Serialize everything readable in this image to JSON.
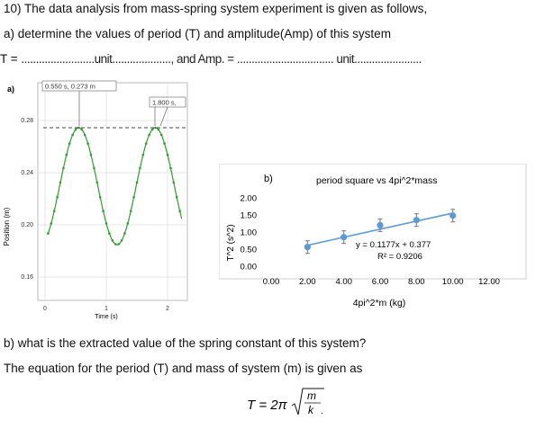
{
  "question": {
    "line1": "10) The data analysis from mass-spring system experiment is given as follows,",
    "line2": "a) determine the values of period (T) and amplitude(Amp) of this system",
    "line3_T": "T = ",
    "line3_dots1": ".........................unit...................., and  Amp. = ................................. unit.......................",
    "line4": "b) what is the extracted value of the spring constant of this system?",
    "line5": "The equation for the period (T) and mass of system (m) is given as"
  },
  "formula": {
    "lhs": "T = 2π",
    "num": "m",
    "den": "k"
  },
  "chart_a": {
    "panel_label": "a)",
    "ylabel": "Position (m)",
    "xlabel": "Time (s)",
    "yticks": [
      "0.28",
      "0.24",
      "0.20",
      "0.16"
    ],
    "xticks": [
      "0",
      "1",
      "2"
    ],
    "annot1": "0.550 s, 0.273 m",
    "annot2": "1.800 s,"
  },
  "chart_data": {
    "type": "scatter",
    "title": "period square vs 4pi^2*mass",
    "panel_label": "b)",
    "xlabel": "4pi^2*m (kg)",
    "ylabel": "T^2 (s^2)",
    "xlim": [
      0,
      12
    ],
    "ylim": [
      0,
      2
    ],
    "xticks": [
      "0.00",
      "2.00",
      "4.00",
      "6.00",
      "8.00",
      "10.00",
      "12.00"
    ],
    "yticks": [
      "0.00",
      "0.50",
      "1.00",
      "1.50",
      "2.00"
    ],
    "x": [
      2.0,
      4.0,
      6.0,
      8.0,
      10.0
    ],
    "y": [
      0.56,
      0.85,
      1.2,
      1.35,
      1.48
    ],
    "fit_equation": "y = 0.1177x + 0.377",
    "r_squared": "R² = 0.9206",
    "color": "#5b9bd5"
  }
}
